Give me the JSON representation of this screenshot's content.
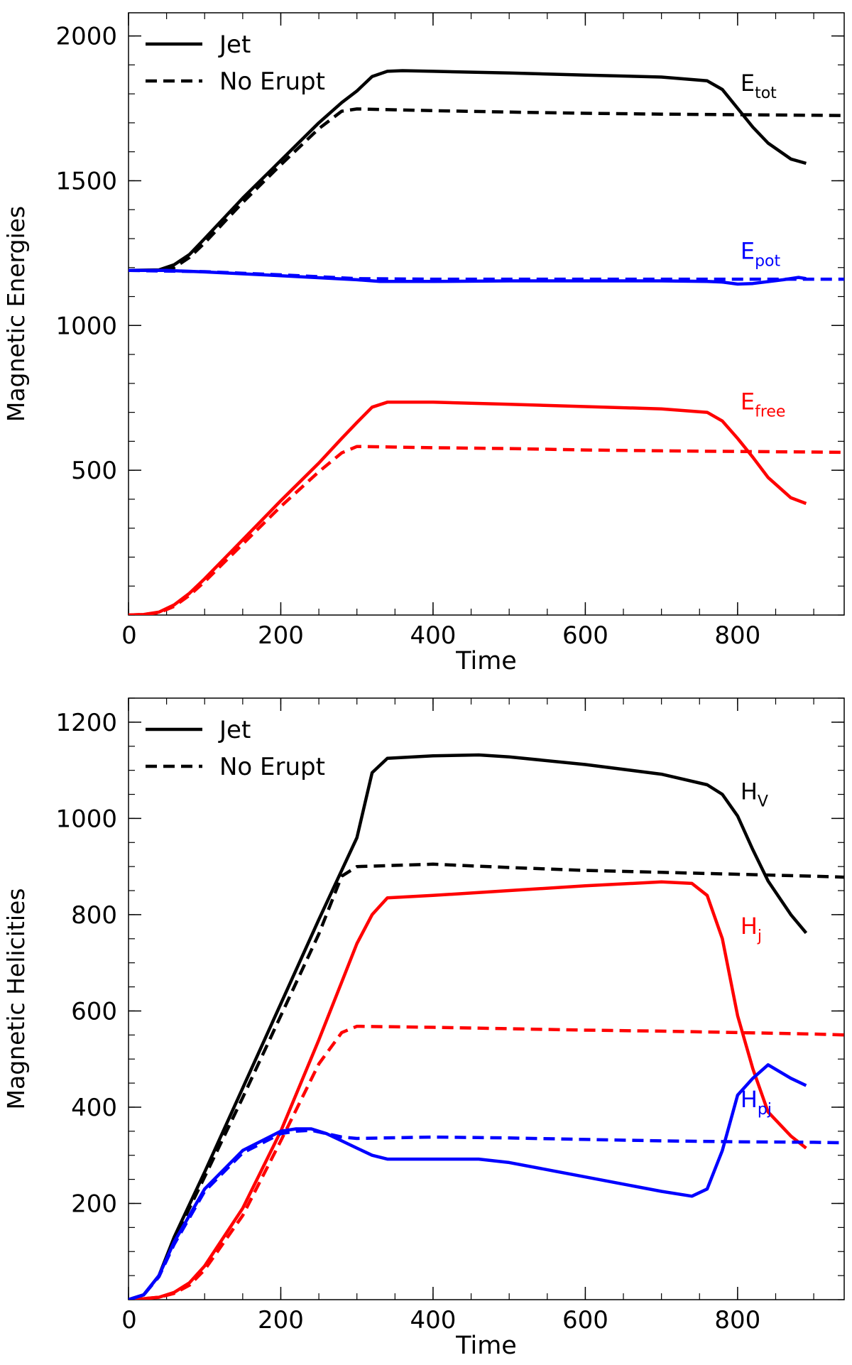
{
  "chart_data": [
    {
      "type": "line",
      "xlabel": "Time",
      "ylabel": "Magnetic Energies",
      "xlim": [
        0,
        940
      ],
      "ylim": [
        0,
        2080
      ],
      "xticks": [
        0,
        200,
        400,
        600,
        800
      ],
      "yticks": [
        500,
        1000,
        1500,
        2000
      ],
      "legend": {
        "position": "top-left",
        "entries": [
          {
            "label": "Jet",
            "style": "solid"
          },
          {
            "label": "No Erupt",
            "style": "dashed"
          }
        ]
      },
      "series": [
        {
          "group": "E_tot",
          "style": "solid",
          "color": "#000000",
          "x": [
            0,
            40,
            60,
            80,
            100,
            150,
            200,
            250,
            280,
            300,
            320,
            340,
            360,
            400,
            500,
            600,
            700,
            760,
            780,
            800,
            820,
            840,
            870,
            890
          ],
          "y": [
            1190,
            1192,
            1210,
            1245,
            1300,
            1440,
            1570,
            1700,
            1770,
            1810,
            1860,
            1878,
            1880,
            1878,
            1872,
            1865,
            1858,
            1845,
            1815,
            1750,
            1685,
            1630,
            1575,
            1560
          ]
        },
        {
          "group": "E_tot",
          "style": "dashed",
          "color": "#000000",
          "x": [
            0,
            40,
            60,
            80,
            100,
            150,
            200,
            250,
            280,
            300,
            350,
            400,
            500,
            600,
            700,
            800,
            900,
            940
          ],
          "y": [
            1190,
            1190,
            1200,
            1235,
            1285,
            1425,
            1555,
            1680,
            1740,
            1748,
            1745,
            1742,
            1737,
            1733,
            1730,
            1728,
            1726,
            1725
          ]
        },
        {
          "group": "E_pot",
          "style": "solid",
          "color": "#0000ff",
          "x": [
            0,
            50,
            100,
            200,
            300,
            330,
            400,
            500,
            600,
            700,
            760,
            780,
            800,
            820,
            860,
            880,
            890
          ],
          "y": [
            1190,
            1190,
            1185,
            1172,
            1158,
            1152,
            1152,
            1154,
            1154,
            1154,
            1152,
            1150,
            1143,
            1145,
            1158,
            1166,
            1162
          ]
        },
        {
          "group": "E_pot",
          "style": "dashed",
          "color": "#0000ff",
          "x": [
            0,
            100,
            200,
            300,
            400,
            600,
            800,
            940
          ],
          "y": [
            1190,
            1186,
            1175,
            1162,
            1160,
            1160,
            1160,
            1160
          ]
        },
        {
          "group": "E_free",
          "style": "solid",
          "color": "#ff0000",
          "x": [
            0,
            20,
            40,
            60,
            80,
            100,
            150,
            200,
            250,
            280,
            300,
            320,
            340,
            400,
            500,
            600,
            700,
            760,
            780,
            800,
            820,
            840,
            870,
            890
          ],
          "y": [
            0,
            2,
            10,
            35,
            75,
            125,
            260,
            395,
            525,
            610,
            665,
            718,
            735,
            735,
            728,
            720,
            712,
            700,
            670,
            610,
            545,
            475,
            405,
            385
          ]
        },
        {
          "group": "E_free",
          "style": "dashed",
          "color": "#ff0000",
          "x": [
            0,
            20,
            40,
            60,
            80,
            100,
            150,
            200,
            250,
            280,
            300,
            350,
            400,
            500,
            600,
            700,
            800,
            900,
            940
          ],
          "y": [
            0,
            2,
            8,
            30,
            68,
            115,
            245,
            375,
            495,
            560,
            582,
            580,
            578,
            575,
            570,
            567,
            565,
            563,
            562
          ]
        }
      ],
      "annotations": [
        {
          "base": "E",
          "sub": "tot",
          "color": "#000000",
          "x": 800,
          "y": 1810
        },
        {
          "base": "E",
          "sub": "pot",
          "color": "#0000ff",
          "x": 800,
          "y": 1230
        },
        {
          "base": "E",
          "sub": "free",
          "color": "#ff0000",
          "x": 800,
          "y": 710
        }
      ]
    },
    {
      "type": "line",
      "xlabel": "Time",
      "ylabel": "Magnetic Helicities",
      "xlim": [
        0,
        940
      ],
      "ylim": [
        0,
        1250
      ],
      "xticks": [
        0,
        200,
        400,
        600,
        800
      ],
      "yticks": [
        200,
        400,
        600,
        800,
        1000,
        1200
      ],
      "legend": {
        "position": "top-left",
        "entries": [
          {
            "label": "Jet",
            "style": "solid"
          },
          {
            "label": "No Erupt",
            "style": "dashed"
          }
        ]
      },
      "series": [
        {
          "group": "H_V",
          "style": "solid",
          "color": "#000000",
          "x": [
            0,
            20,
            40,
            60,
            100,
            150,
            200,
            250,
            300,
            320,
            340,
            400,
            460,
            500,
            600,
            700,
            760,
            780,
            800,
            820,
            840,
            870,
            890
          ],
          "y": [
            0,
            10,
            50,
            130,
            265,
            440,
            615,
            790,
            960,
            1095,
            1125,
            1130,
            1132,
            1128,
            1112,
            1092,
            1070,
            1050,
            1005,
            935,
            870,
            800,
            762
          ]
        },
        {
          "group": "H_V",
          "style": "dashed",
          "color": "#000000",
          "x": [
            0,
            20,
            40,
            60,
            100,
            150,
            200,
            250,
            280,
            300,
            400,
            500,
            600,
            700,
            800,
            900,
            940
          ],
          "y": [
            0,
            10,
            48,
            125,
            255,
            420,
            590,
            760,
            880,
            900,
            905,
            898,
            892,
            888,
            884,
            880,
            878
          ]
        },
        {
          "group": "H_j",
          "style": "solid",
          "color": "#ff0000",
          "x": [
            0,
            20,
            40,
            60,
            80,
            100,
            150,
            200,
            250,
            280,
            300,
            320,
            340,
            400,
            500,
            600,
            700,
            740,
            760,
            780,
            800,
            820,
            840,
            870,
            890
          ],
          "y": [
            0,
            2,
            5,
            15,
            35,
            70,
            190,
            350,
            540,
            660,
            740,
            800,
            835,
            840,
            850,
            860,
            868,
            865,
            840,
            750,
            590,
            480,
            390,
            340,
            315
          ]
        },
        {
          "group": "H_j",
          "style": "dashed",
          "color": "#ff0000",
          "x": [
            0,
            20,
            40,
            60,
            80,
            100,
            150,
            200,
            250,
            280,
            300,
            400,
            500,
            600,
            700,
            800,
            900,
            940
          ],
          "y": [
            0,
            2,
            5,
            13,
            30,
            62,
            175,
            330,
            490,
            555,
            568,
            566,
            563,
            560,
            558,
            555,
            552,
            550
          ]
        },
        {
          "group": "H_pj",
          "style": "solid",
          "color": "#0000ff",
          "x": [
            0,
            20,
            40,
            60,
            100,
            150,
            200,
            220,
            240,
            260,
            280,
            300,
            320,
            340,
            400,
            460,
            500,
            600,
            700,
            740,
            760,
            780,
            800,
            820,
            840,
            870,
            890
          ],
          "y": [
            0,
            10,
            50,
            120,
            230,
            310,
            350,
            355,
            355,
            345,
            330,
            315,
            300,
            292,
            292,
            292,
            285,
            255,
            225,
            215,
            230,
            310,
            425,
            460,
            488,
            460,
            445
          ]
        },
        {
          "group": "H_pj",
          "style": "dashed",
          "color": "#0000ff",
          "x": [
            0,
            20,
            40,
            60,
            100,
            150,
            200,
            220,
            240,
            260,
            280,
            300,
            400,
            500,
            600,
            700,
            800,
            900,
            940
          ],
          "y": [
            0,
            10,
            48,
            115,
            225,
            305,
            345,
            350,
            352,
            345,
            338,
            335,
            338,
            336,
            333,
            330,
            328,
            327,
            326
          ]
        }
      ],
      "annotations": [
        {
          "base": "H",
          "sub": "V",
          "color": "#000000",
          "x": 800,
          "y": 1040
        },
        {
          "base": "H",
          "sub": "j",
          "color": "#ff0000",
          "x": 800,
          "y": 760
        },
        {
          "base": "H",
          "sub": "pj",
          "color": "#0000ff",
          "x": 800,
          "y": 400
        }
      ]
    }
  ]
}
